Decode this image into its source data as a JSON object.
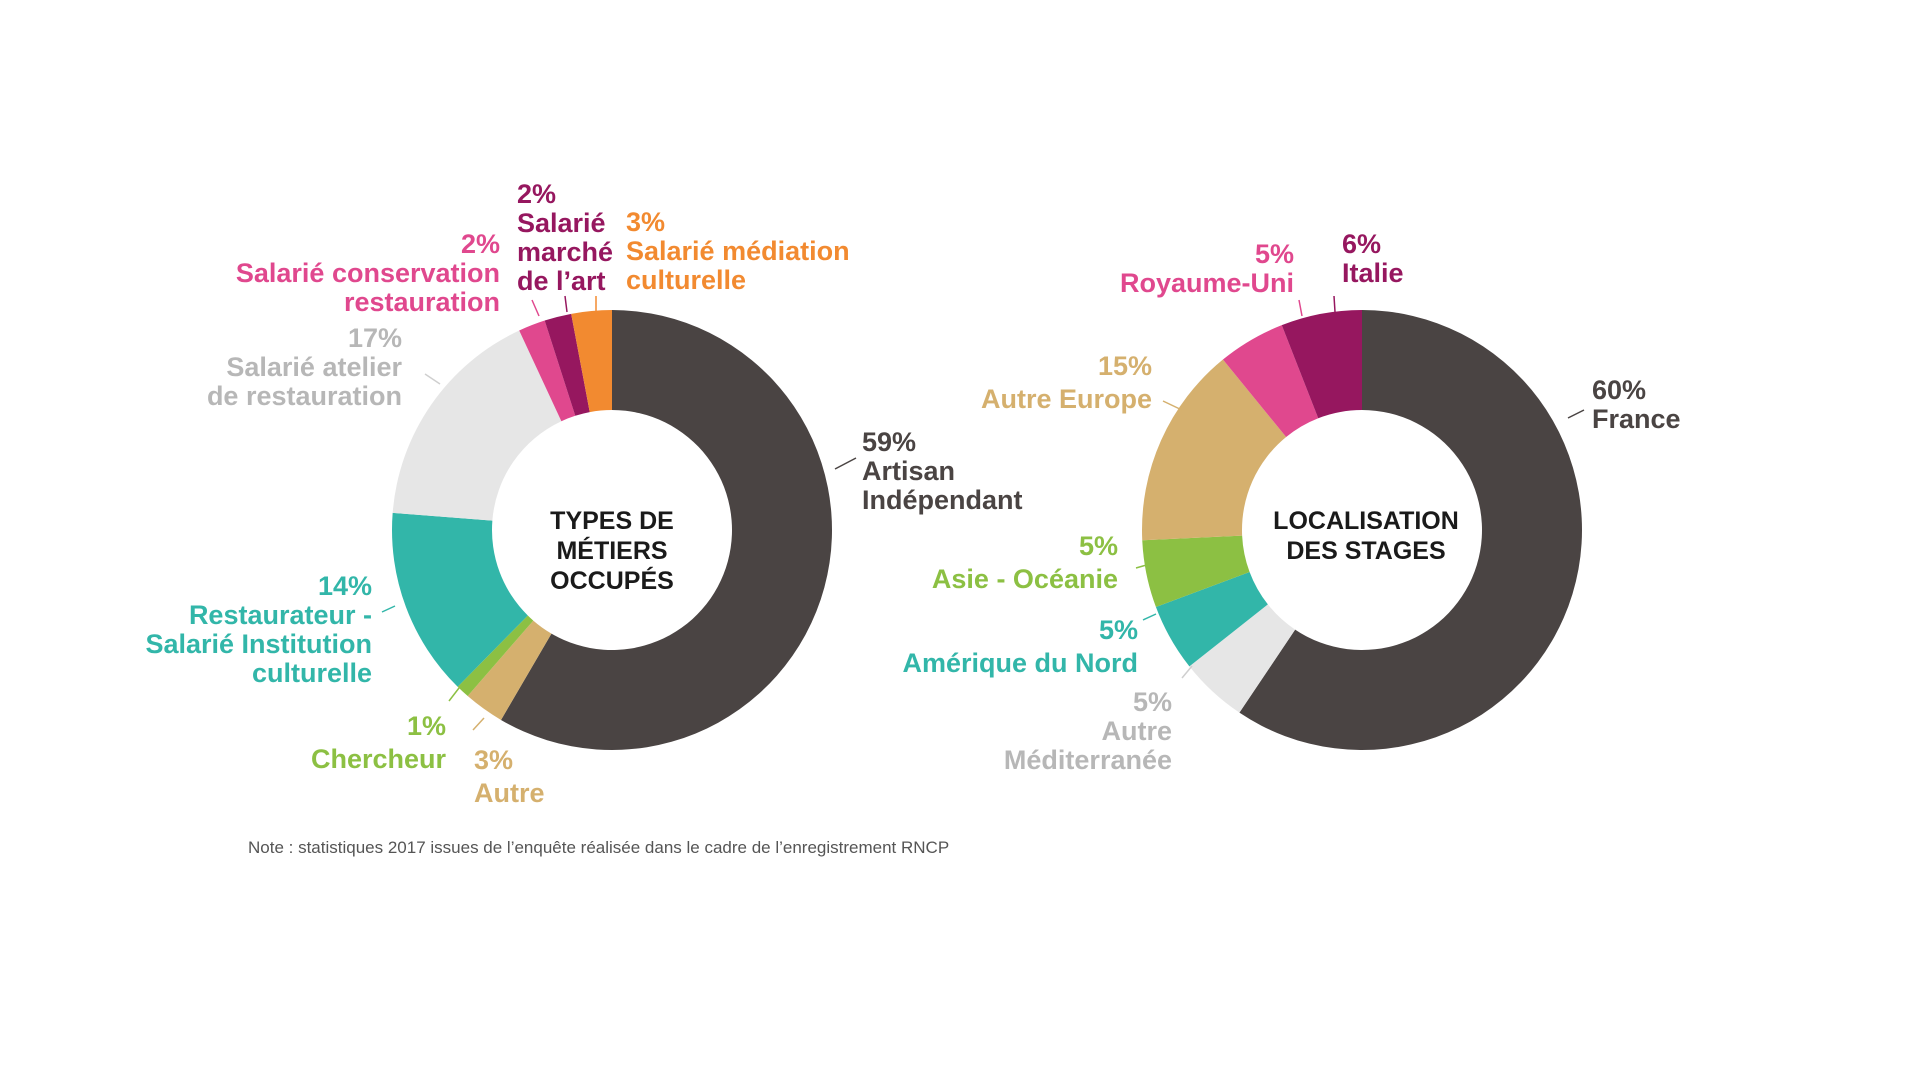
{
  "note": "Note : statistiques 2017 issues de l’enquête réalisée dans le cadre de l’enregistrement RNCP",
  "chart_data": [
    {
      "type": "pie",
      "donut": true,
      "title_lines": [
        "TYPES DE MÉTIERS",
        "OCCUPÉS"
      ],
      "slices": [
        {
          "label_lines": [
            "Artisan",
            "Indépendant"
          ],
          "pct_label": "59%",
          "value": 59,
          "color": "#4a4443"
        },
        {
          "label_lines": [
            "Autre"
          ],
          "pct_label": "3%",
          "value": 3,
          "color": "#d5b06e"
        },
        {
          "label_lines": [
            "Chercheur"
          ],
          "pct_label": "1%",
          "value": 1,
          "color": "#8cc043"
        },
        {
          "label_lines": [
            "Restaurateur -",
            "Salarié Institution",
            "culturelle"
          ],
          "pct_label": "14%",
          "value": 14,
          "color": "#32b6a9"
        },
        {
          "label_lines": [
            "Salarié atelier",
            "de restauration"
          ],
          "pct_label": "17%",
          "value": 17,
          "color": "#e6e6e6"
        },
        {
          "label_lines": [
            "Salarié conservation",
            "restauration"
          ],
          "pct_label": "2%",
          "value": 2,
          "color": "#e0488e"
        },
        {
          "label_lines": [
            "Salarié",
            "marché",
            "de l’art"
          ],
          "pct_label": "2%",
          "value": 2,
          "color": "#96175f"
        },
        {
          "label_lines": [
            "Salarié médiation",
            "culturelle"
          ],
          "pct_label": "3%",
          "value": 3,
          "color": "#f28a30"
        }
      ]
    },
    {
      "type": "pie",
      "donut": true,
      "title_lines": [
        "LOCALISATION",
        "DES STAGES"
      ],
      "slices": [
        {
          "label_lines": [
            "France"
          ],
          "pct_label": "60%",
          "value": 60,
          "color": "#4a4443"
        },
        {
          "label_lines": [
            "Autre",
            "Méditerranée"
          ],
          "pct_label": "5%",
          "value": 5,
          "color": "#e6e6e6"
        },
        {
          "label_lines": [
            "Amérique du Nord"
          ],
          "pct_label": "5%",
          "value": 5,
          "color": "#32b6a9"
        },
        {
          "label_lines": [
            "Asie - Océanie"
          ],
          "pct_label": "5%",
          "value": 5,
          "color": "#8cc043"
        },
        {
          "label_lines": [
            "Autre Europe"
          ],
          "pct_label": "15%",
          "value": 15,
          "color": "#d5b06e"
        },
        {
          "label_lines": [
            "Royaume-Uni"
          ],
          "pct_label": "5%",
          "value": 5,
          "color": "#e0488e"
        },
        {
          "label_lines": [
            "Italie"
          ],
          "pct_label": "6%",
          "value": 6,
          "color": "#96175f"
        }
      ]
    }
  ]
}
